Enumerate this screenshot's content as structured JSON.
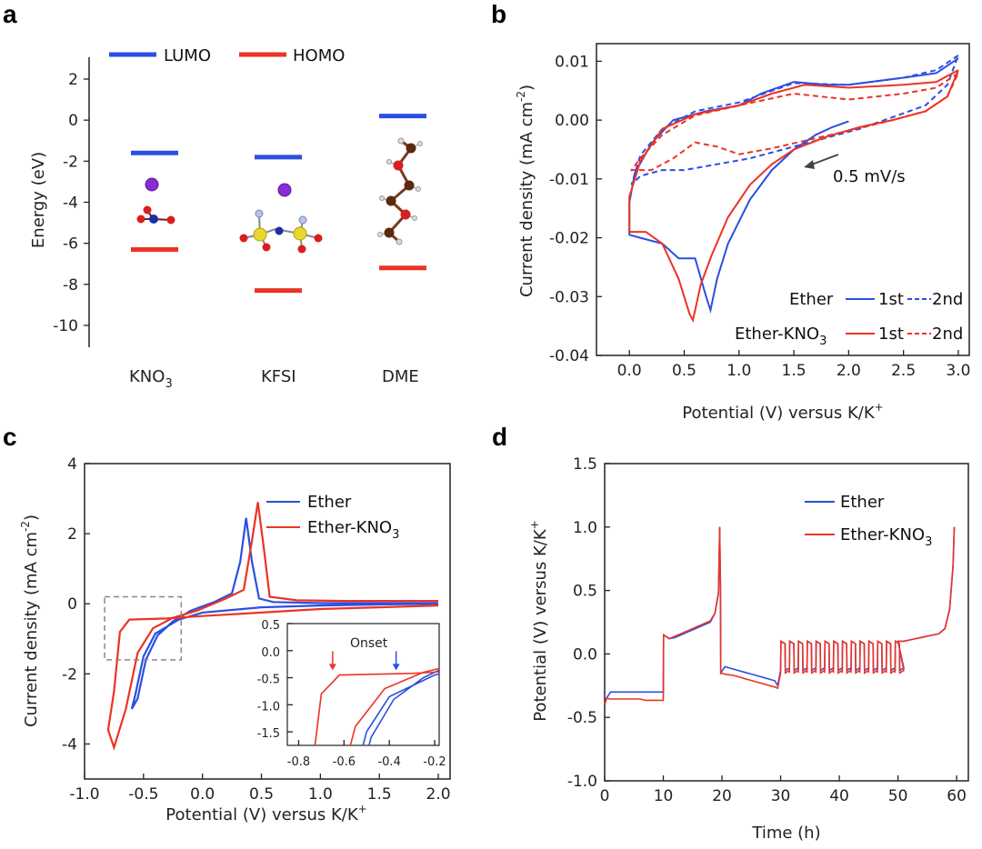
{
  "colors": {
    "blue": "#2b4fe0",
    "red": "#ec3325",
    "dark": "#222222"
  },
  "chart_data": [
    {
      "panel": "a",
      "type": "scatter",
      "title": "",
      "ylabel": "Energy (eV)",
      "ylim": [
        -11,
        3
      ],
      "yticks": [
        2,
        0,
        -2,
        -4,
        -6,
        -8,
        -10
      ],
      "categories": [
        "KNO3",
        "KFSI",
        "DME"
      ],
      "category_labels": [
        {
          "base": "KNO",
          "sub": "3"
        },
        {
          "base": "KFSI",
          "sub": ""
        },
        {
          "base": "DME",
          "sub": ""
        }
      ],
      "legend": [
        "LUMO",
        "HOMO"
      ],
      "series": [
        {
          "name": "LUMO",
          "values": [
            -1.6,
            -1.8,
            0.2
          ]
        },
        {
          "name": "HOMO",
          "values": [
            -6.3,
            -8.3,
            -7.2
          ]
        }
      ]
    },
    {
      "panel": "b",
      "type": "line",
      "xlabel": "Potential (V) versus K/K",
      "xlabel_sup": "+",
      "ylabel": "Current density (mA cm",
      "ylabel_sup": "-2",
      "ylabel_end": ")",
      "xlim": [
        -0.3,
        3.1
      ],
      "ylim": [
        -0.04,
        0.013
      ],
      "xticks": [
        0.0,
        0.5,
        1.0,
        1.5,
        2.0,
        2.5,
        3.0
      ],
      "xtick_labels": [
        "0.0",
        "0.5",
        "1.0",
        "1.5",
        "2.0",
        "2.5",
        "3.0"
      ],
      "yticks": [
        0.01,
        0.0,
        -0.01,
        -0.02,
        -0.03,
        -0.04
      ],
      "ytick_labels": [
        "0.01",
        "0.00",
        "-0.01",
        "-0.02",
        "-0.03",
        "-0.04"
      ],
      "annotation": "0.5 mV/s",
      "legend_rows": [
        {
          "label": "Ether",
          "sub": "",
          "c1": "1st",
          "c2": "2nd",
          "color": "blue"
        },
        {
          "label": "Ether-KNO",
          "sub": "3",
          "c1": "1st",
          "c2": "2nd",
          "color": "red"
        }
      ],
      "series": [
        {
          "name": "Ether 1st",
          "color": "blue",
          "dash": false,
          "points": [
            [
              3.0,
              0.0105
            ],
            [
              2.8,
              0.008
            ],
            [
              2.5,
              0.0072
            ],
            [
              2.2,
              0.0065
            ],
            [
              2.0,
              0.006
            ],
            [
              1.8,
              0.006
            ],
            [
              1.5,
              0.0065
            ],
            [
              1.2,
              0.0045
            ],
            [
              1.0,
              0.0025
            ],
            [
              0.7,
              0.0015
            ],
            [
              0.4,
              0.0
            ],
            [
              0.2,
              -0.004
            ],
            [
              0.05,
              -0.009
            ],
            [
              0.0,
              -0.014
            ],
            [
              0.0,
              -0.0195
            ],
            [
              0.1,
              -0.02
            ],
            [
              0.3,
              -0.021
            ],
            [
              0.45,
              -0.0235
            ],
            [
              0.6,
              -0.0235
            ],
            [
              0.7,
              -0.03
            ],
            [
              0.74,
              -0.0323
            ],
            [
              0.8,
              -0.027
            ],
            [
              0.9,
              -0.021
            ],
            [
              1.1,
              -0.0135
            ],
            [
              1.3,
              -0.0085
            ],
            [
              1.5,
              -0.005
            ],
            [
              1.7,
              -0.0025
            ],
            [
              1.85,
              -0.0012
            ],
            [
              2.0,
              -0.0002
            ]
          ]
        },
        {
          "name": "Ether 2nd",
          "color": "blue",
          "dash": true,
          "points": [
            [
              3.0,
              0.011
            ],
            [
              2.8,
              0.0085
            ],
            [
              2.5,
              0.0072
            ],
            [
              2.0,
              0.006
            ],
            [
              1.5,
              0.0063
            ],
            [
              1.0,
              0.003
            ],
            [
              0.6,
              0.0015
            ],
            [
              0.3,
              -0.0015
            ],
            [
              0.1,
              -0.006
            ],
            [
              0.02,
              -0.011
            ],
            [
              0.1,
              -0.0095
            ],
            [
              0.3,
              -0.0085
            ],
            [
              0.5,
              -0.0085
            ],
            [
              0.8,
              -0.0075
            ],
            [
              1.1,
              -0.0065
            ],
            [
              1.5,
              -0.0045
            ],
            [
              1.8,
              -0.003
            ],
            [
              2.1,
              -0.0015
            ],
            [
              2.4,
              0.0005
            ],
            [
              2.7,
              0.0025
            ],
            [
              2.9,
              0.006
            ],
            [
              3.0,
              0.011
            ]
          ]
        },
        {
          "name": "Ether-KNO3 1st",
          "color": "red",
          "dash": false,
          "points": [
            [
              3.0,
              0.0085
            ],
            [
              2.8,
              0.0065
            ],
            [
              2.5,
              0.006
            ],
            [
              2.0,
              0.0055
            ],
            [
              1.6,
              0.006
            ],
            [
              1.3,
              0.0045
            ],
            [
              1.0,
              0.0025
            ],
            [
              0.6,
              0.001
            ],
            [
              0.3,
              -0.0015
            ],
            [
              0.1,
              -0.007
            ],
            [
              0.0,
              -0.013
            ],
            [
              0.0,
              -0.019
            ],
            [
              0.15,
              -0.019
            ],
            [
              0.3,
              -0.021
            ],
            [
              0.45,
              -0.027
            ],
            [
              0.55,
              -0.033
            ],
            [
              0.58,
              -0.034
            ],
            [
              0.65,
              -0.028
            ],
            [
              0.75,
              -0.023
            ],
            [
              0.9,
              -0.0165
            ],
            [
              1.1,
              -0.011
            ],
            [
              1.3,
              -0.0075
            ],
            [
              1.5,
              -0.005
            ],
            [
              1.8,
              -0.0028
            ],
            [
              2.1,
              -0.0012
            ],
            [
              2.4,
              0.0
            ],
            [
              2.7,
              0.0015
            ],
            [
              2.9,
              0.004
            ],
            [
              3.0,
              0.0085
            ]
          ]
        },
        {
          "name": "Ether-KNO3 2nd",
          "color": "red",
          "dash": true,
          "points": [
            [
              3.0,
              0.008
            ],
            [
              2.8,
              0.0055
            ],
            [
              2.5,
              0.0045
            ],
            [
              2.0,
              0.0035
            ],
            [
              1.5,
              0.0045
            ],
            [
              1.0,
              0.0025
            ],
            [
              0.6,
              0.0008
            ],
            [
              0.3,
              -0.0025
            ],
            [
              0.1,
              -0.0065
            ],
            [
              0.02,
              -0.0085
            ],
            [
              0.2,
              -0.0085
            ],
            [
              0.4,
              -0.0065
            ],
            [
              0.6,
              -0.0038
            ],
            [
              0.8,
              -0.0045
            ],
            [
              1.0,
              -0.0058
            ],
            [
              1.3,
              -0.0048
            ],
            [
              1.6,
              -0.0035
            ],
            [
              2.0,
              -0.0018
            ],
            [
              2.4,
              0.0
            ],
            [
              2.7,
              0.0015
            ],
            [
              2.9,
              0.004
            ],
            [
              3.0,
              0.008
            ]
          ]
        }
      ]
    },
    {
      "panel": "c",
      "type": "line",
      "xlabel": "Potential (V) versus K/K",
      "xlabel_sup": "+",
      "ylabel": "Current density (mA cm",
      "ylabel_sup": "-2",
      "ylabel_end": ")",
      "xlim": [
        -1.0,
        2.1
      ],
      "ylim": [
        -5,
        4
      ],
      "xticks": [
        -1.0,
        -0.5,
        0.0,
        0.5,
        1.0,
        1.5,
        2.0
      ],
      "xtick_labels": [
        "-1.0",
        "-0.5",
        "0.0",
        "0.5",
        "1.0",
        "1.5",
        "2.0"
      ],
      "yticks": [
        4,
        2,
        0,
        -2,
        -4
      ],
      "ytick_labels": [
        "4",
        "2",
        "0",
        "-2",
        "-4"
      ],
      "legend": [
        {
          "label": "Ether",
          "sub": "",
          "color": "blue"
        },
        {
          "label": "Ether-KNO",
          "sub": "3",
          "color": "red"
        }
      ],
      "series": [
        {
          "name": "Ether",
          "color": "blue",
          "points": [
            [
              2.0,
              0.0
            ],
            [
              1.5,
              -0.02
            ],
            [
              1.0,
              -0.05
            ],
            [
              0.5,
              -0.1
            ],
            [
              0.0,
              -0.25
            ],
            [
              -0.2,
              -0.45
            ],
            [
              -0.4,
              -0.85
            ],
            [
              -0.5,
              -1.5
            ],
            [
              -0.57,
              -2.6
            ],
            [
              -0.6,
              -3.0
            ],
            [
              -0.55,
              -2.7
            ],
            [
              -0.48,
              -1.6
            ],
            [
              -0.38,
              -0.9
            ],
            [
              -0.25,
              -0.5
            ],
            [
              -0.1,
              -0.2
            ],
            [
              0.1,
              0.05
            ],
            [
              0.25,
              0.3
            ],
            [
              0.32,
              1.2
            ],
            [
              0.37,
              2.45
            ],
            [
              0.42,
              1.2
            ],
            [
              0.48,
              0.15
            ],
            [
              0.6,
              0.05
            ],
            [
              1.0,
              0.02
            ],
            [
              1.5,
              0.02
            ],
            [
              2.0,
              0.02
            ]
          ]
        },
        {
          "name": "Ether-KNO3",
          "color": "red",
          "points": [
            [
              2.0,
              -0.05
            ],
            [
              1.5,
              -0.1
            ],
            [
              1.0,
              -0.15
            ],
            [
              0.5,
              -0.25
            ],
            [
              0.0,
              -0.35
            ],
            [
              -0.3,
              -0.42
            ],
            [
              -0.62,
              -0.45
            ],
            [
              -0.7,
              -0.8
            ],
            [
              -0.75,
              -2.5
            ],
            [
              -0.8,
              -3.6
            ],
            [
              -0.75,
              -4.1
            ],
            [
              -0.65,
              -3.0
            ],
            [
              -0.55,
              -1.4
            ],
            [
              -0.42,
              -0.7
            ],
            [
              -0.25,
              -0.4
            ],
            [
              -0.05,
              -0.2
            ],
            [
              0.2,
              0.15
            ],
            [
              0.35,
              0.4
            ],
            [
              0.42,
              1.8
            ],
            [
              0.47,
              2.9
            ],
            [
              0.52,
              1.6
            ],
            [
              0.57,
              0.2
            ],
            [
              0.8,
              0.1
            ],
            [
              1.2,
              0.08
            ],
            [
              2.0,
              0.08
            ]
          ]
        }
      ],
      "inset": {
        "xlim": [
          -0.85,
          -0.18
        ],
        "ylim": [
          -1.75,
          0.5
        ],
        "xticks": [
          -0.8,
          -0.6,
          -0.4,
          -0.2
        ],
        "xtick_labels": [
          "-0.8",
          "-0.6",
          "-0.4",
          "-0.2"
        ],
        "yticks": [
          0.5,
          0.0,
          -0.5,
          -1.0,
          -1.5
        ],
        "ytick_labels": [
          "0.5",
          "0.0",
          "-0.5",
          "-1.0",
          "-1.5"
        ],
        "annotation": "Onset",
        "onset_markers": [
          {
            "color": "red",
            "x": -0.65,
            "y": -0.38
          },
          {
            "color": "blue",
            "x": -0.37,
            "y": -0.38
          }
        ],
        "zoom_box": {
          "x": [
            -0.83,
            -0.18
          ],
          "y": [
            -1.6,
            0.2
          ]
        }
      }
    },
    {
      "panel": "d",
      "type": "line",
      "xlabel": "Time (h)",
      "ylabel": "Potential (V) versus K/K",
      "ylabel_sup": "+",
      "xlim": [
        0,
        62
      ],
      "ylim": [
        -1.0,
        1.5
      ],
      "xticks": [
        0,
        10,
        20,
        30,
        40,
        50,
        60
      ],
      "xtick_labels": [
        "0",
        "10",
        "20",
        "30",
        "40",
        "50",
        "60"
      ],
      "yticks": [
        1.5,
        1.0,
        0.5,
        0.0,
        -0.5,
        -1.0
      ],
      "ytick_labels": [
        "1.5",
        "1.0",
        "0.5",
        "0.0",
        "-0.5",
        "-1.0"
      ],
      "legend": [
        {
          "label": "Ether",
          "sub": "",
          "color": "blue"
        },
        {
          "label": "Ether-KNO",
          "sub": "3",
          "color": "red"
        }
      ],
      "series": [
        {
          "name": "Ether",
          "color": "blue"
        },
        {
          "name": "Ether-KNO3",
          "color": "red"
        }
      ]
    }
  ]
}
